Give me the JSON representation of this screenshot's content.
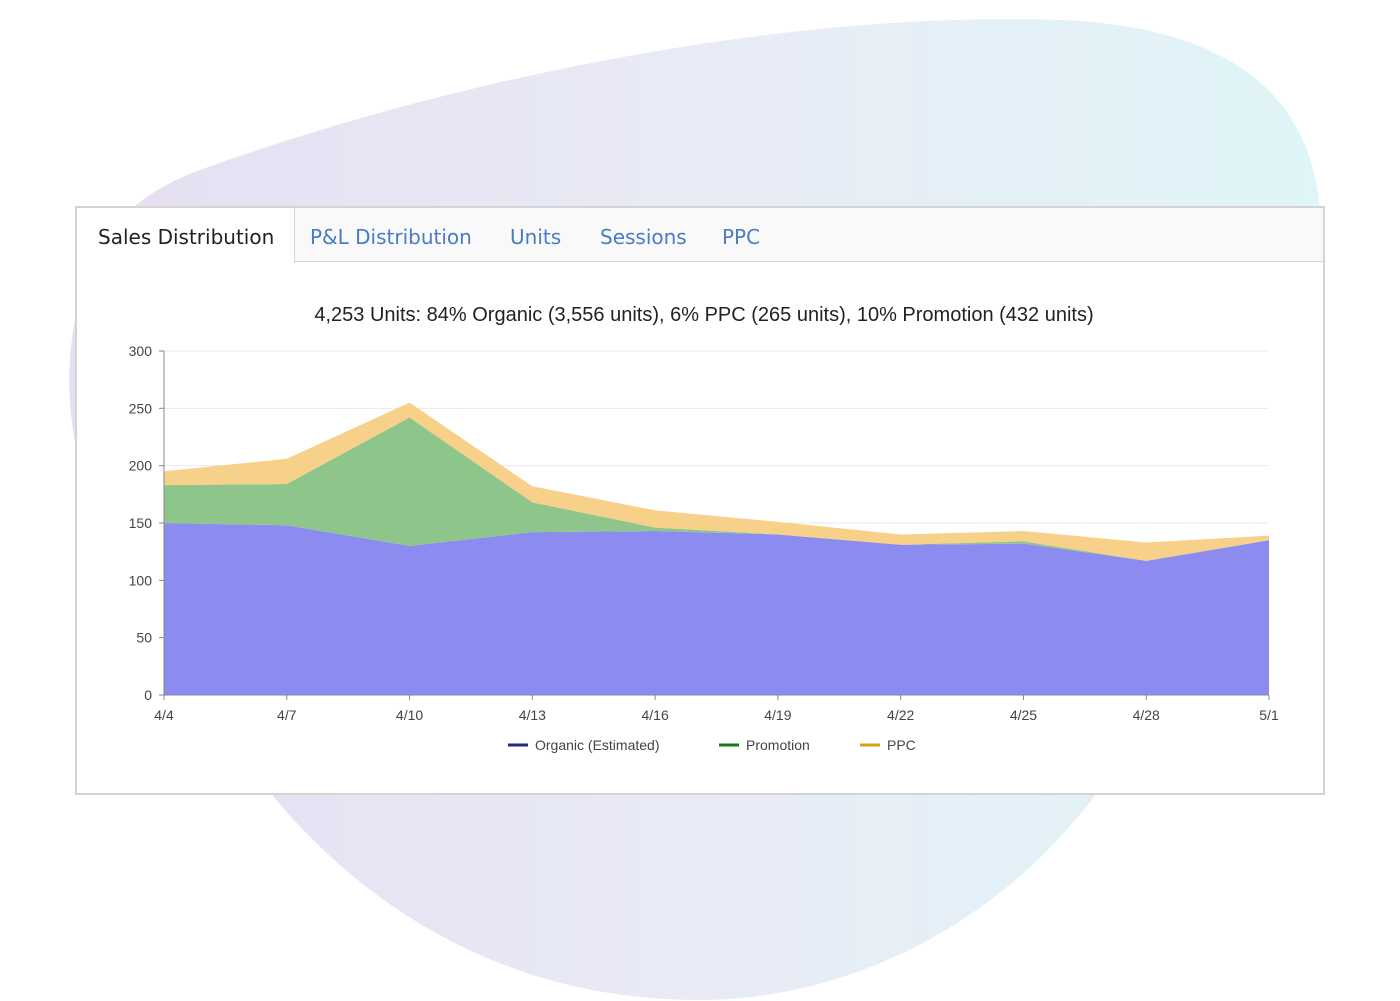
{
  "tabs": [
    {
      "label": "Sales Distribution",
      "active": true
    },
    {
      "label": "P&L Distribution",
      "active": false
    },
    {
      "label": "Units",
      "active": false
    },
    {
      "label": "Sessions",
      "active": false
    },
    {
      "label": "PPC",
      "active": false
    }
  ],
  "colors": {
    "organic_fill": "#8c8cf0",
    "promotion_fill": "#8ec58a",
    "ppc_fill": "#f7d08a",
    "organic_legend": "#1f2d7a",
    "promotion_legend": "#1a7a1a",
    "ppc_legend": "#d4a017",
    "tab_link": "#4a7bc4"
  },
  "chart_data": {
    "type": "area",
    "stacked": true,
    "title": "4,253 Units: 84% Organic (3,556 units), 6% PPC (265 units), 10% Promotion (432 units)",
    "x": [
      "4/4",
      "4/7",
      "4/10",
      "4/13",
      "4/16",
      "4/19",
      "4/22",
      "4/25",
      "4/28",
      "5/1"
    ],
    "ylim": [
      0,
      300
    ],
    "yticks": [
      0,
      50,
      100,
      150,
      200,
      250,
      300
    ],
    "grid": true,
    "legend_position": "bottom",
    "series": [
      {
        "name": "Organic (Estimated)",
        "values": [
          150,
          148,
          130,
          142,
          143,
          140,
          131,
          132,
          117,
          135
        ]
      },
      {
        "name": "Promotion",
        "values": [
          33,
          36,
          112,
          26,
          3,
          0,
          0,
          2,
          0,
          0
        ]
      },
      {
        "name": "PPC",
        "values": [
          12,
          22,
          13,
          14,
          15,
          11,
          9,
          9,
          16,
          4
        ]
      }
    ]
  }
}
